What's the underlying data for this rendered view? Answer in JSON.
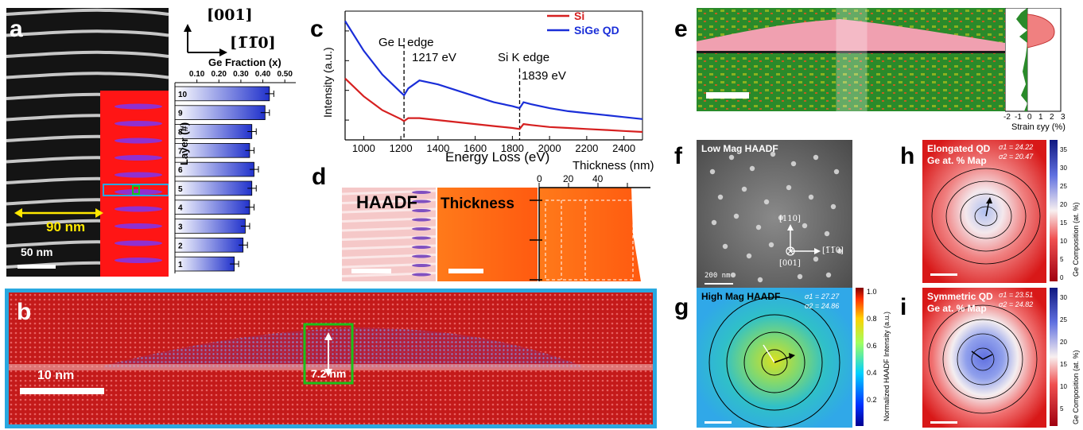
{
  "panels": {
    "a": {
      "letter": "a",
      "orient_top": "[001]",
      "orient_right": "[1̅1̅0]",
      "fraction_axis_title": "Ge Fraction (x)",
      "fraction_ticks": [
        "0.10",
        "0.20",
        "0.30",
        "0.40",
        "0.50"
      ],
      "layer_axis_title": "Layer (#)",
      "width_label": "90 nm",
      "scale_label": "50 nm"
    },
    "b": {
      "letter": "b",
      "height_label": "7.2 nm",
      "scale_label": "10 nm"
    },
    "c": {
      "letter": "c",
      "ylabel": "Intensity (a.u.)",
      "xlabel": "Energy Loss (eV)",
      "annot_ge_name": "Ge L edge",
      "annot_ge_value": "1217 eV",
      "annot_si_name": "Si K edge",
      "annot_si_value": "1839 eV"
    },
    "d": {
      "letter": "d",
      "haadf_label": "HAADF",
      "thickness_label": "Thickness",
      "thickness_axis_title": "Thickness (nm)",
      "thickness_ticks": [
        "0",
        "20",
        "40"
      ]
    },
    "e": {
      "letter": "e",
      "strain_label": "Strain εyy (%)",
      "strain_ticks": [
        "-2",
        "-1",
        "0",
        "1",
        "2",
        "3"
      ]
    },
    "f": {
      "letter": "f",
      "title": "Low Mag HAADF",
      "scale_label": "200 nm",
      "dir_up": "[110]",
      "dir_right": "[1̅1̅0]",
      "dir_out": "[001]"
    },
    "g": {
      "letter": "g",
      "title": "High Mag HAADF",
      "sigma1": "σ1 = 27.27",
      "sigma2": "σ2 = 24.86",
      "cbar_label": "Normalized HAADF Intensity (a.u.)",
      "cbar_ticks": [
        "1.0",
        "0.8",
        "0.6",
        "0.4",
        "0.2"
      ]
    },
    "h": {
      "letter": "h",
      "title_line1": "Elongated QD",
      "title_line2": "Ge at. % Map",
      "sigma1": "σ1 = 24.22",
      "sigma2": "σ2 = 20.47",
      "cbar_label": "Ge Composition (at. %)",
      "cbar_ticks": [
        "35",
        "30",
        "25",
        "20",
        "15",
        "10",
        "5",
        "0"
      ]
    },
    "i": {
      "letter": "i",
      "title_line1": "Symmetric QD",
      "title_line2": "Ge at. % Map",
      "sigma1": "σ1 = 23.51",
      "sigma2": "σ2 = 24.82",
      "cbar_label": "Ge Composition (at. %)",
      "cbar_ticks": [
        "30",
        "25",
        "20",
        "15",
        "10",
        "5"
      ]
    }
  },
  "chart_data": [
    {
      "type": "bar",
      "orientation": "horizontal",
      "categories": [
        "10",
        "9",
        "8",
        "7",
        "6",
        "5",
        "4",
        "3",
        "2",
        "1"
      ],
      "values": [
        0.43,
        0.41,
        0.35,
        0.34,
        0.36,
        0.35,
        0.34,
        0.32,
        0.31,
        0.27
      ],
      "errors": [
        0.02,
        0.02,
        0.02,
        0.02,
        0.02,
        0.02,
        0.02,
        0.02,
        0.02,
        0.02
      ],
      "xlabel": "Ge Fraction (x)",
      "ylabel": "Layer (#)",
      "xlim": [
        0.0,
        0.55
      ]
    },
    {
      "type": "line",
      "xlabel": "Energy Loss (eV)",
      "ylabel": "Intensity (a.u.)",
      "xlim": [
        900,
        2500
      ],
      "x_ticks": [
        "1000",
        "1200",
        "1400",
        "1600",
        "1800",
        "2000",
        "2200",
        "2400"
      ],
      "legend_position": "top-right",
      "series": [
        {
          "name": "Si",
          "color": "#d62020",
          "x": [
            900,
            1000,
            1100,
            1200,
            1217,
            1240,
            1300,
            1400,
            1500,
            1600,
            1700,
            1800,
            1839,
            1860,
            1900,
            2000,
            2100,
            2200,
            2300,
            2400,
            2500
          ],
          "y": [
            0.56,
            0.47,
            0.4,
            0.355,
            0.345,
            0.36,
            0.36,
            0.35,
            0.34,
            0.33,
            0.32,
            0.31,
            0.305,
            0.33,
            0.325,
            0.315,
            0.31,
            0.305,
            0.3,
            0.295,
            0.29
          ]
        },
        {
          "name": "SiGe QD",
          "color": "#1a2ed8",
          "x": [
            900,
            1000,
            1100,
            1200,
            1217,
            1240,
            1300,
            1400,
            1500,
            1600,
            1700,
            1800,
            1839,
            1860,
            1900,
            2000,
            2100,
            2200,
            2300,
            2400,
            2500
          ],
          "y": [
            0.85,
            0.7,
            0.58,
            0.49,
            0.475,
            0.51,
            0.55,
            0.53,
            0.5,
            0.47,
            0.44,
            0.42,
            0.41,
            0.44,
            0.43,
            0.41,
            0.395,
            0.385,
            0.375,
            0.365,
            0.355
          ]
        }
      ]
    }
  ],
  "colors": {
    "bar_dark": "#2233cc",
    "si": "#d62020",
    "sige": "#1a2ed8",
    "cyan_box": "#29a8e0",
    "green_box": "#19c219",
    "yellow": "#ffe800"
  }
}
